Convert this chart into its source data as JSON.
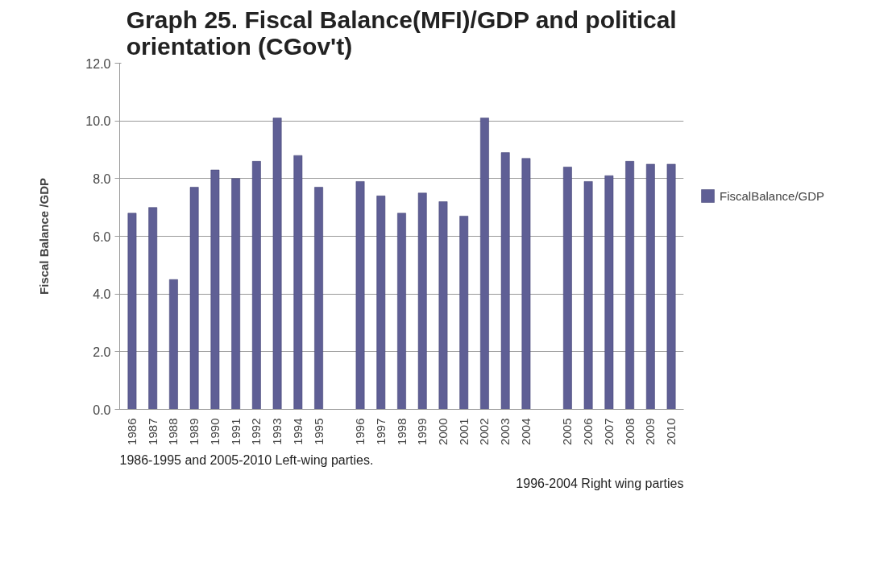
{
  "chart_data": {
    "type": "bar",
    "title": "Graph 25. Fiscal Balance(MFI)/GDP and political orientation (CGov't)",
    "ylabel": "Fiscal Balance /GDP",
    "categories": [
      "1986",
      "1987",
      "1988",
      "1989",
      "1990",
      "1991",
      "1992",
      "1993",
      "1994",
      "1995",
      null,
      "1996",
      "1997",
      "1998",
      "1999",
      "2000",
      "2001",
      "2002",
      "2003",
      "2004",
      null,
      "2005",
      "2006",
      "2007",
      "2008",
      "2009",
      "2010"
    ],
    "series": [
      {
        "name": "FiscalBalance/GDP",
        "color": "#5f5f95",
        "values": [
          6.8,
          7.0,
          4.5,
          7.7,
          8.3,
          8.0,
          8.6,
          10.1,
          8.8,
          7.7,
          null,
          7.9,
          7.4,
          6.8,
          7.5,
          7.2,
          6.7,
          10.1,
          8.9,
          8.7,
          null,
          8.4,
          7.9,
          8.1,
          8.6,
          8.5,
          8.5
        ]
      }
    ],
    "ylim": [
      0,
      12
    ],
    "yticks": [
      {
        "value": 0,
        "label": "0.0"
      },
      {
        "value": 2,
        "label": "2.0"
      },
      {
        "value": 4,
        "label": "4.0"
      },
      {
        "value": 6,
        "label": "6.0"
      },
      {
        "value": 8,
        "label": "8.0"
      },
      {
        "value": 10,
        "label": "10.0"
      },
      {
        "value": 12,
        "label": "12.0"
      }
    ],
    "grid": "y",
    "legend": "right",
    "annotations": [
      "1986-1995 and 2005-2010 Left-wing parties.",
      "1996-2004 Right wing parties"
    ]
  }
}
